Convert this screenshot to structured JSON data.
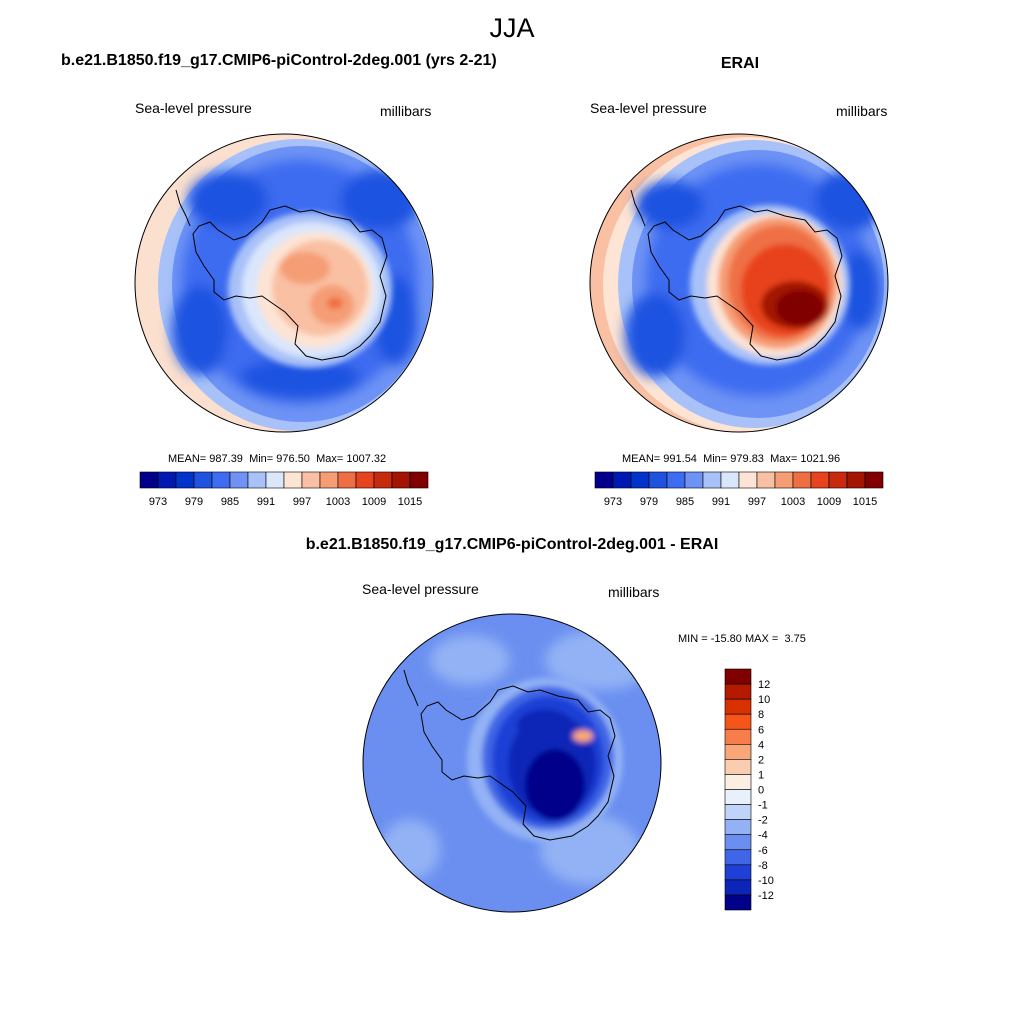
{
  "title": "JJA",
  "colors": {
    "land_outline": "#000000",
    "ocean_bg": "#ffffff"
  },
  "chart_data": [
    {
      "type": "heatmap",
      "panel": "model",
      "title": "b.e21.B1850.f19_g17.CMIP6-piControl-2deg.001 (yrs 2-21)",
      "left_label": "Sea-level pressure",
      "right_label": "millibars",
      "stats": {
        "mean_label": "MEAN=",
        "mean": "987.39",
        "min_label": "Min=",
        "min": "976.50",
        "max_label": "Max=",
        "max": "1007.32"
      },
      "colorbar": {
        "orientation": "horizontal",
        "levels": [
          "973",
          "979",
          "985",
          "991",
          "997",
          "1003",
          "1009",
          "1015"
        ],
        "colors": [
          "#00008b",
          "#0019b3",
          "#0033cc",
          "#1f52e0",
          "#3d6cf0",
          "#6e93f5",
          "#a8c1f8",
          "#dae6fb",
          "#fde4d4",
          "#f9c0a3",
          "#f59d74",
          "#ef6f45",
          "#e8431f",
          "#c72a0d",
          "#a31403",
          "#800000"
        ]
      }
    },
    {
      "type": "heatmap",
      "panel": "obs",
      "title": "ERAI",
      "left_label": "Sea-level pressure",
      "right_label": "millibars",
      "stats": {
        "mean_label": "MEAN=",
        "mean": "991.54",
        "min_label": "Min=",
        "min": "979.83",
        "max_label": "Max=",
        "max": "1021.96"
      },
      "colorbar": {
        "orientation": "horizontal",
        "levels": [
          "973",
          "979",
          "985",
          "991",
          "997",
          "1003",
          "1009",
          "1015"
        ],
        "colors": [
          "#00008b",
          "#0019b3",
          "#0033cc",
          "#1f52e0",
          "#3d6cf0",
          "#6e93f5",
          "#a8c1f8",
          "#dae6fb",
          "#fde4d4",
          "#f9c0a3",
          "#f59d74",
          "#ef6f45",
          "#e8431f",
          "#c72a0d",
          "#a31403",
          "#800000"
        ]
      }
    },
    {
      "type": "heatmap",
      "panel": "difference",
      "title": "b.e21.B1850.f19_g17.CMIP6-piControl-2deg.001 - ERAI",
      "left_label": "Sea-level pressure",
      "right_label": "millibars",
      "stats": {
        "min_label": "MIN =",
        "min": "-15.80",
        "max_label": "MAX =",
        "max": "3.75"
      },
      "colorbar": {
        "orientation": "vertical",
        "levels": [
          "12",
          "10",
          "8",
          "6",
          "4",
          "2",
          "1",
          "0",
          "-1",
          "-2",
          "-4",
          "-6",
          "-8",
          "-10",
          "-12"
        ],
        "colors": [
          "#800000",
          "#b31a00",
          "#d93000",
          "#f55518",
          "#f77d4a",
          "#f9a779",
          "#fbcdb0",
          "#fdeee3",
          "#e8f0fc",
          "#c0d3f9",
          "#93b2f5",
          "#6a8ff0",
          "#3f66e6",
          "#1f40d6",
          "#0a25b8",
          "#00008b"
        ]
      }
    }
  ]
}
